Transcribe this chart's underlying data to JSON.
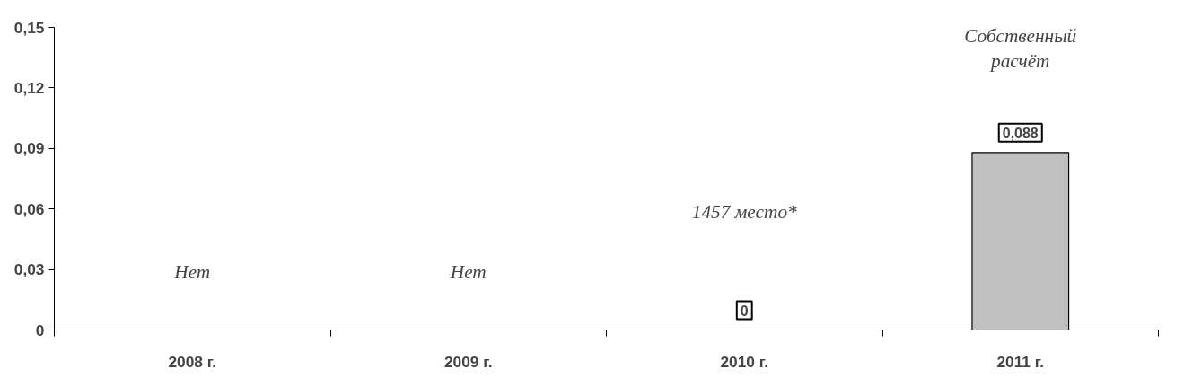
{
  "chart_data": {
    "type": "bar",
    "categories": [
      "2008 г.",
      "2009 г.",
      "2010 г.",
      "2011 г."
    ],
    "values": [
      null,
      null,
      0,
      0.088
    ],
    "value_labels": [
      null,
      null,
      "0",
      "0,088"
    ],
    "color": "#c0c0c0",
    "ylim": [
      0,
      0.15
    ],
    "yticks": [
      {
        "value": 0,
        "label": "0"
      },
      {
        "value": 0.03,
        "label": "0,03"
      },
      {
        "value": 0.06,
        "label": "0,06"
      },
      {
        "value": 0.09,
        "label": "0,09"
      },
      {
        "value": 0.12,
        "label": "0,12"
      },
      {
        "value": 0.15,
        "label": "0,15"
      }
    ],
    "grid": false,
    "annotations": [
      "Нет",
      "Нет",
      "1457 место*",
      "Собственный\nрасчёт"
    ]
  }
}
